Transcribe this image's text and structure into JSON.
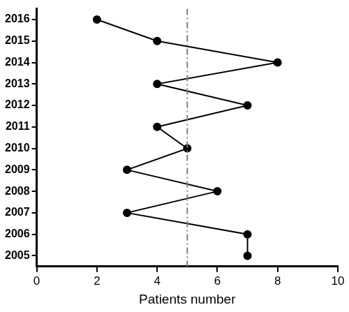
{
  "chart_data": {
    "type": "line",
    "orientation": "horizontal",
    "x_label": "Patients number",
    "categories": [
      "2005",
      "2006",
      "2007",
      "2008",
      "2009",
      "2010",
      "2011",
      "2012",
      "2013",
      "2014",
      "2015",
      "2016"
    ],
    "values": [
      7,
      7,
      3,
      6,
      3,
      5,
      4,
      7,
      4,
      8,
      4,
      2
    ],
    "color": "#000000",
    "marker": "circle",
    "line_style": "solid",
    "reference_x": 5,
    "xlim": [
      0,
      10
    ],
    "xticks": [
      0,
      2,
      4,
      6,
      8,
      10
    ],
    "grid": false
  }
}
